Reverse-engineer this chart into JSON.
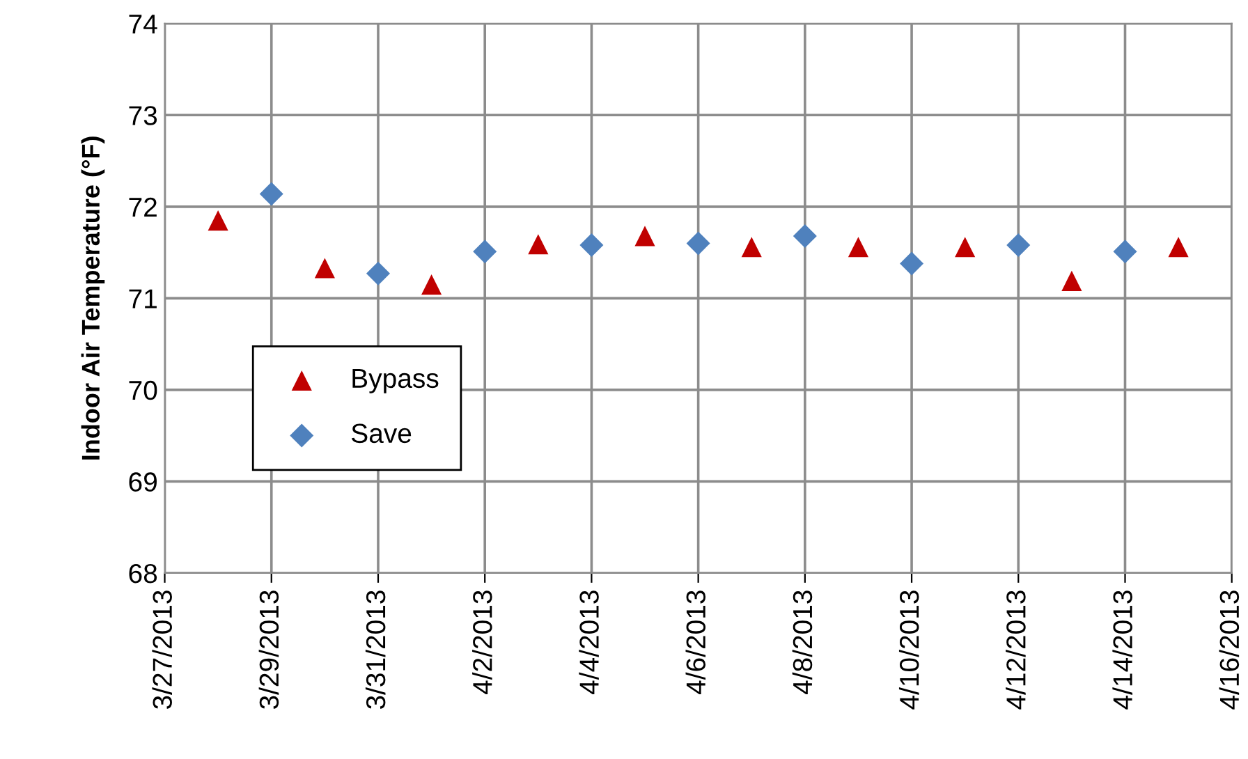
{
  "chart_data": {
    "type": "scatter",
    "ylabel": "Indoor Air Temperature (°F)",
    "series": [
      {
        "name": "Bypass",
        "color": "#c00000",
        "marker": "triangle",
        "x": [
          "2013-03-28",
          "2013-03-30",
          "2013-04-01",
          "2013-04-03",
          "2013-04-05",
          "2013-04-07",
          "2013-04-09",
          "2013-04-11",
          "2013-04-13",
          "2013-04-15"
        ],
        "values": [
          71.85,
          71.33,
          71.15,
          71.59,
          71.68,
          71.56,
          71.56,
          71.56,
          71.19,
          71.56
        ]
      },
      {
        "name": "Save",
        "color": "#4f81bd",
        "marker": "diamond",
        "x": [
          "2013-03-29",
          "2013-03-31",
          "2013-04-02",
          "2013-04-04",
          "2013-04-06",
          "2013-04-08",
          "2013-04-10",
          "2013-04-12",
          "2013-04-14"
        ],
        "values": [
          72.14,
          71.27,
          71.51,
          71.58,
          71.6,
          71.68,
          71.38,
          71.58,
          71.51
        ]
      }
    ],
    "xlim": [
      "2013-03-27",
      "2013-04-16"
    ],
    "xticks": [
      {
        "value": "2013-03-27",
        "label": "3/27/2013"
      },
      {
        "value": "2013-03-29",
        "label": "3/29/2013"
      },
      {
        "value": "2013-03-31",
        "label": "3/31/2013"
      },
      {
        "value": "2013-04-02",
        "label": "4/2/2013"
      },
      {
        "value": "2013-04-04",
        "label": "4/4/2013"
      },
      {
        "value": "2013-04-06",
        "label": "4/6/2013"
      },
      {
        "value": "2013-04-08",
        "label": "4/8/2013"
      },
      {
        "value": "2013-04-10",
        "label": "4/10/2013"
      },
      {
        "value": "2013-04-12",
        "label": "4/12/2013"
      },
      {
        "value": "2013-04-14",
        "label": "4/14/2013"
      },
      {
        "value": "2013-04-16",
        "label": "4/16/2013"
      }
    ],
    "ylim": [
      68,
      74
    ],
    "yticks": [
      68,
      69,
      70,
      71,
      72,
      73,
      74
    ],
    "grid": true,
    "legend": "left"
  }
}
